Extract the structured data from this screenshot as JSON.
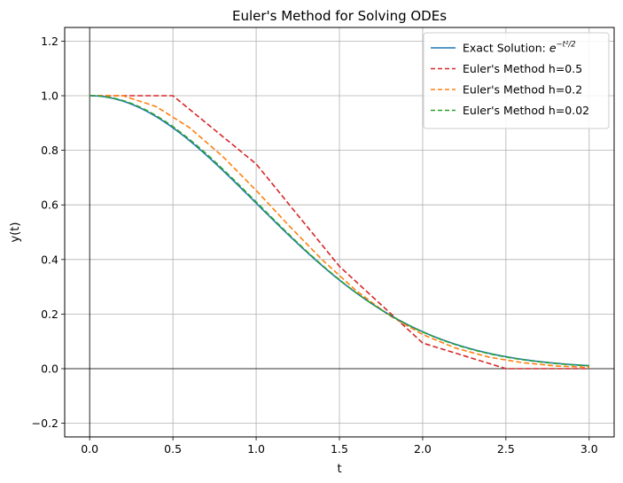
{
  "chart_data": {
    "type": "line",
    "title": "Euler's Method for Solving ODEs",
    "xlabel": "t",
    "ylabel": "y(t)",
    "xlim": [
      -0.15,
      3.15
    ],
    "ylim": [
      -0.25,
      1.25
    ],
    "xticks": [
      0.0,
      0.5,
      1.0,
      1.5,
      2.0,
      2.5,
      3.0
    ],
    "xtick_labels": [
      "0.0",
      "0.5",
      "1.0",
      "1.5",
      "2.0",
      "2.5",
      "3.0"
    ],
    "yticks": [
      -0.2,
      0.0,
      0.2,
      0.4,
      0.6,
      0.8,
      1.0,
      1.2
    ],
    "ytick_labels": [
      "−0.2",
      "0.0",
      "0.2",
      "0.4",
      "0.6",
      "0.8",
      "1.0",
      "1.2"
    ],
    "grid": true,
    "legend_position": "top-right",
    "reference_lines": {
      "x": 0,
      "y": 0
    },
    "series": [
      {
        "name": "Exact Solution: e^{-t²/2}",
        "legend_prefix": "Exact Solution: ",
        "legend_math_base": "e",
        "legend_math_exp": "−t²/2",
        "color": "#1f77b4",
        "style": "solid",
        "function": "exp(-t^2/2)",
        "domain": [
          0,
          3
        ]
      },
      {
        "name": "Euler's Method h=0.5",
        "color": "#d62728",
        "style": "dashed",
        "x": [
          0,
          0.5,
          1.0,
          1.5,
          2.0,
          2.5,
          3.0
        ],
        "y": [
          1.0,
          1.0,
          0.75,
          0.375,
          0.094,
          0.0,
          0.0
        ]
      },
      {
        "name": "Euler's Method h=0.2",
        "color": "#ff7f0e",
        "style": "dashed",
        "x": [
          0,
          0.2,
          0.4,
          0.6,
          0.8,
          1.0,
          1.2,
          1.4,
          1.6,
          1.8,
          2.0,
          2.2,
          2.4,
          2.6,
          2.8,
          3.0
        ],
        "y": [
          1.0,
          1.0,
          0.96,
          0.883,
          0.777,
          0.653,
          0.522,
          0.397,
          0.286,
          0.195,
          0.125,
          0.075,
          0.042,
          0.022,
          0.01,
          0.005
        ]
      },
      {
        "name": "Euler's Method h=0.02",
        "color": "#2ca02c",
        "style": "dashed",
        "step": 0.02,
        "domain": [
          0,
          3
        ],
        "method": "euler dy/dt=-t*y, y(0)=1"
      }
    ]
  }
}
